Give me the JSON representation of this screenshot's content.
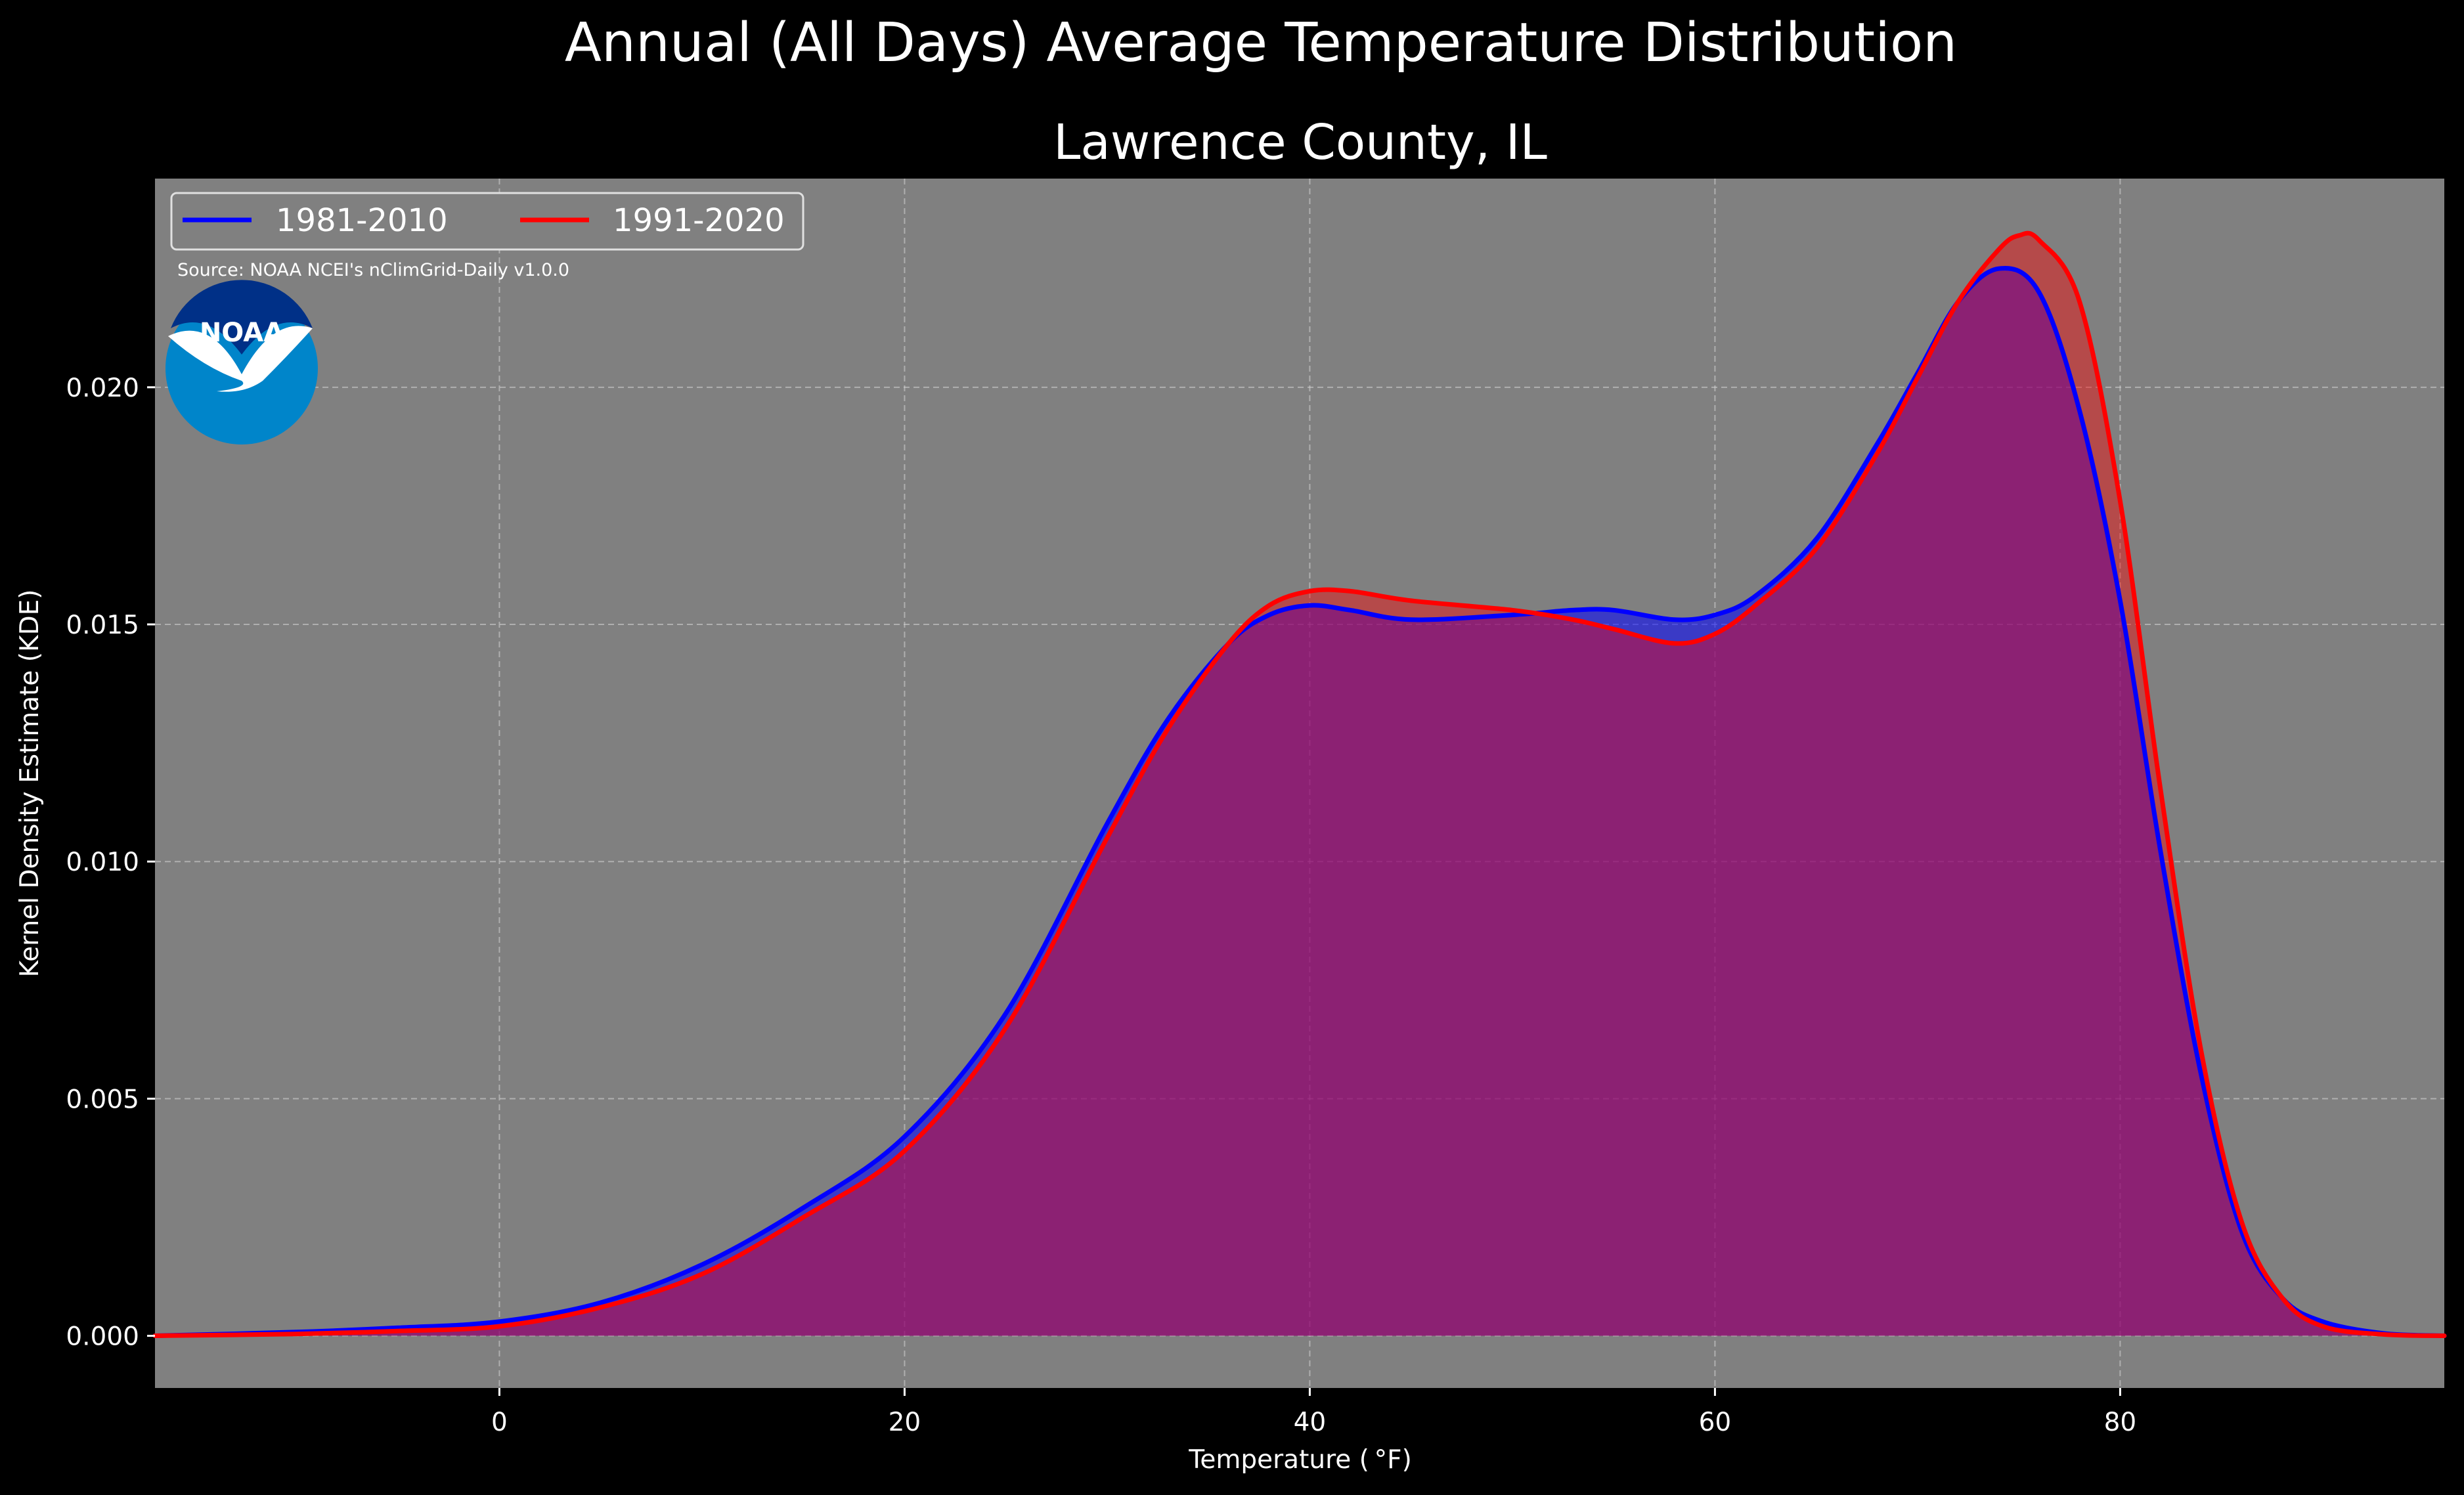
{
  "figure": {
    "suptitle": "Annual (All Days) Average Temperature Distribution",
    "background": "#000000",
    "plot_background": "#808080"
  },
  "logo": {
    "text": "NOAA",
    "outer_color": "#0085ca",
    "inner_color": "#003087"
  },
  "source_note": "Source: NOAA NCEI's nClimGrid-Daily v1.0.0",
  "chart_data": {
    "type": "area",
    "title": "Lawrence County, IL",
    "xlabel": "Temperature ( °F)",
    "ylabel": "Kernel Density Estimate (KDE)",
    "xlim": [
      -17,
      96
    ],
    "ylim": [
      -0.0011,
      0.0244
    ],
    "xticks": [
      0,
      20,
      40,
      60,
      80
    ],
    "xtick_labels": [
      "0",
      "20",
      "40",
      "60",
      "80"
    ],
    "yticks": [
      0.0,
      0.005,
      0.01,
      0.015,
      0.02
    ],
    "ytick_labels": [
      "0.000",
      "0.005",
      "0.010",
      "0.015",
      "0.020"
    ],
    "grid": true,
    "legend": {
      "placement": "top-left",
      "ncol": 2
    },
    "series": [
      {
        "name": "1981-2010",
        "color": "#0000ff",
        "x": [
          -17,
          -10,
          -5,
          0,
          5,
          10,
          15,
          20,
          25,
          30,
          33,
          36,
          38,
          40,
          42,
          45,
          50,
          53,
          55,
          58,
          60,
          62,
          65,
          68,
          70,
          72,
          74,
          76,
          78,
          80,
          82,
          84,
          86,
          88,
          90,
          93,
          96
        ],
        "values": [
          0.0,
          8e-05,
          0.00017,
          0.0003,
          0.0007,
          0.0015,
          0.0027,
          0.0042,
          0.0068,
          0.0108,
          0.013,
          0.0146,
          0.0152,
          0.0154,
          0.0153,
          0.0151,
          0.0152,
          0.0153,
          0.0153,
          0.0151,
          0.0152,
          0.0156,
          0.0168,
          0.0188,
          0.0203,
          0.0218,
          0.0225,
          0.022,
          0.0195,
          0.0155,
          0.0102,
          0.0055,
          0.0022,
          0.0008,
          0.0003,
          5e-05,
          0.0
        ]
      },
      {
        "name": "1991-2020",
        "color": "#ff0000",
        "x": [
          -17,
          -10,
          -5,
          0,
          5,
          10,
          15,
          20,
          25,
          30,
          33,
          36,
          38,
          40,
          42,
          45,
          50,
          53,
          55,
          58,
          60,
          62,
          65,
          68,
          70,
          72,
          74,
          75,
          76,
          78,
          80,
          82,
          84,
          86,
          88,
          90,
          93,
          96
        ],
        "values": [
          0.0,
          4e-05,
          0.0001,
          0.0002,
          0.0006,
          0.0013,
          0.0025,
          0.0039,
          0.0065,
          0.0105,
          0.0128,
          0.0146,
          0.0154,
          0.0157,
          0.0157,
          0.0155,
          0.0153,
          0.0151,
          0.0149,
          0.0146,
          0.0148,
          0.0154,
          0.0166,
          0.0186,
          0.0202,
          0.0218,
          0.0229,
          0.0232,
          0.0231,
          0.0218,
          0.0176,
          0.0115,
          0.006,
          0.0024,
          0.0008,
          0.0002,
          3e-05,
          0.0
        ]
      }
    ]
  }
}
